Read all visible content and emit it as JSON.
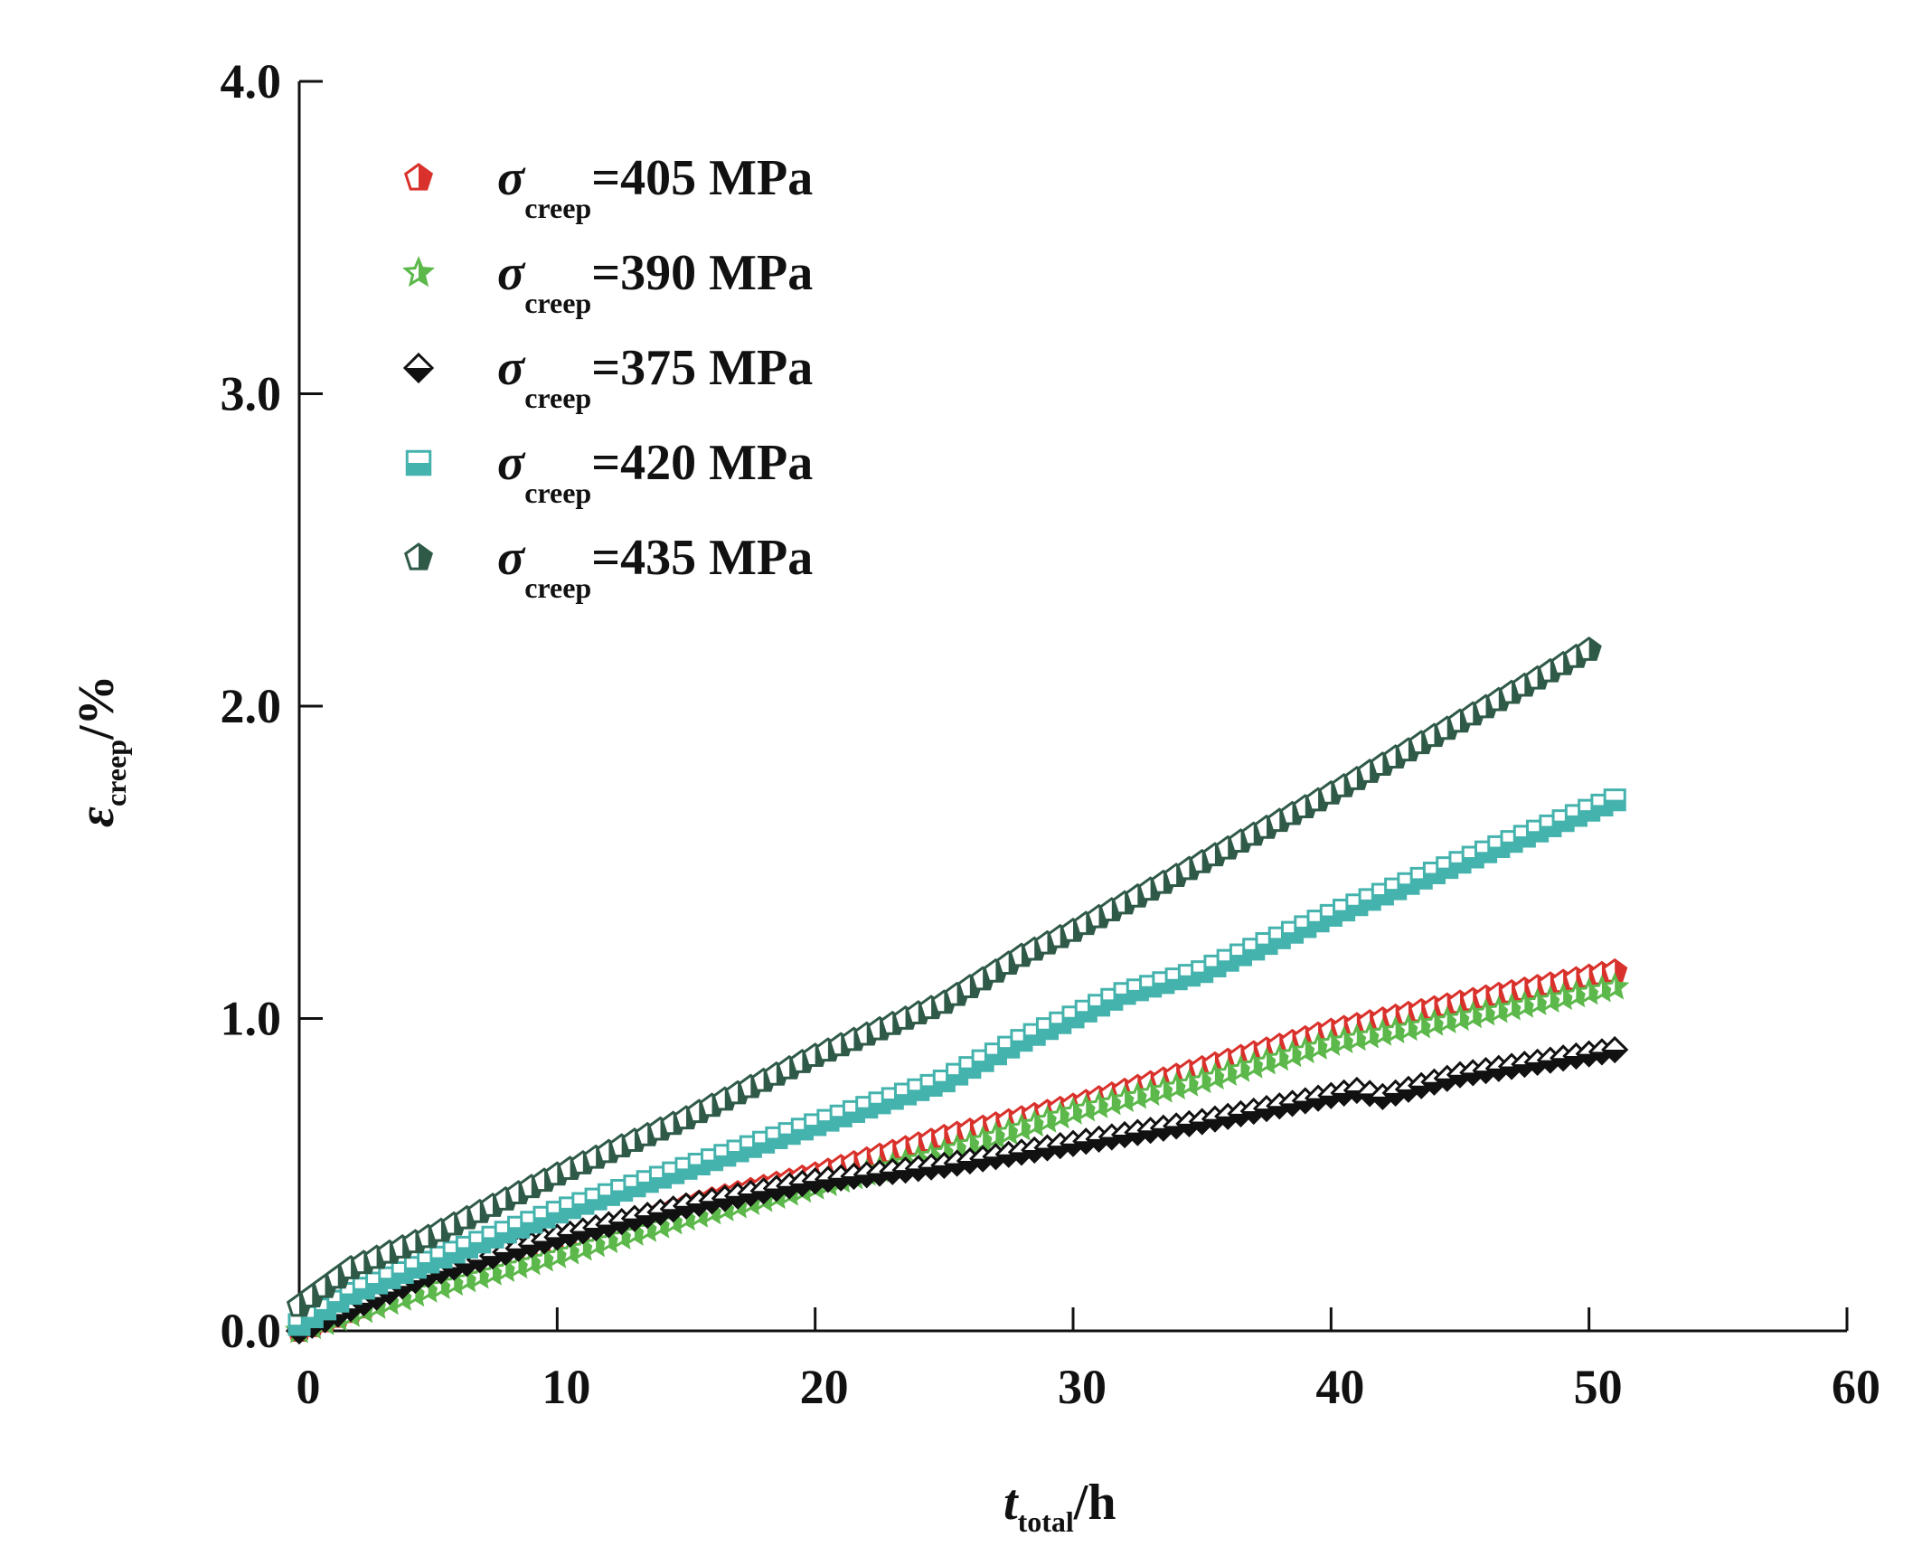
{
  "chart_data": {
    "type": "scatter",
    "title": "",
    "xlabel": {
      "main": "t",
      "sub": "total",
      "unit": "/h"
    },
    "ylabel": {
      "main": "ε",
      "sub": "creep",
      "unit": "/%"
    },
    "xlim": [
      0,
      60
    ],
    "ylim": [
      0,
      4.0
    ],
    "xticks": [
      "0",
      "10",
      "20",
      "30",
      "40",
      "50",
      "60"
    ],
    "yticks": [
      "0.0",
      "1.0",
      "2.0",
      "3.0",
      "4.0"
    ],
    "grid": false,
    "legend_position": "top-left",
    "series": [
      {
        "name": "σcreep=405 MPa",
        "symbol": "σ",
        "sub": "creep",
        "value": "=405 MPa",
        "color": "#d9312b",
        "marker": "pentagon",
        "points": [
          [
            0,
            0
          ],
          [
            5,
            0.15
          ],
          [
            10,
            0.28
          ],
          [
            15,
            0.4
          ],
          [
            20,
            0.5
          ],
          [
            25,
            0.62
          ],
          [
            30,
            0.72
          ],
          [
            35,
            0.84
          ],
          [
            40,
            0.96
          ],
          [
            45,
            1.05
          ],
          [
            51,
            1.15
          ]
        ]
      },
      {
        "name": "σcreep=390 MPa",
        "symbol": "σ",
        "sub": "creep",
        "value": "=390 MPa",
        "color": "#5cb84a",
        "marker": "star",
        "points": [
          [
            0,
            0
          ],
          [
            5,
            0.13
          ],
          [
            10,
            0.24
          ],
          [
            15,
            0.36
          ],
          [
            20,
            0.46
          ],
          [
            25,
            0.57
          ],
          [
            30,
            0.7
          ],
          [
            35,
            0.8
          ],
          [
            40,
            0.92
          ],
          [
            45,
            1.0
          ],
          [
            51,
            1.1
          ]
        ]
      },
      {
        "name": "σcreep=375 MPa",
        "symbol": "σ",
        "sub": "creep",
        "value": "=375 MPa",
        "color": "#111111",
        "marker": "diamond",
        "points": [
          [
            0,
            0
          ],
          [
            5,
            0.18
          ],
          [
            10,
            0.3
          ],
          [
            15,
            0.4
          ],
          [
            20,
            0.48
          ],
          [
            25,
            0.53
          ],
          [
            30,
            0.6
          ],
          [
            35,
            0.67
          ],
          [
            41,
            0.77
          ],
          [
            42,
            0.75
          ],
          [
            45,
            0.82
          ],
          [
            51,
            0.9
          ]
        ]
      },
      {
        "name": "σcreep=420 MPa",
        "symbol": "σ",
        "sub": "creep",
        "value": "=420 MPa",
        "color": "#45b3ad",
        "marker": "square",
        "points": [
          [
            0,
            0.02
          ],
          [
            2,
            0.12
          ],
          [
            5,
            0.22
          ],
          [
            10,
            0.38
          ],
          [
            15,
            0.52
          ],
          [
            20,
            0.66
          ],
          [
            25,
            0.8
          ],
          [
            28,
            0.93
          ],
          [
            32,
            1.08
          ],
          [
            35,
            1.15
          ],
          [
            40,
            1.33
          ],
          [
            45,
            1.5
          ],
          [
            51,
            1.7
          ]
        ]
      },
      {
        "name": "σcreep=435 MPa",
        "symbol": "σ",
        "sub": "creep",
        "value": "=435 MPa",
        "color": "#2f5a48",
        "marker": "pentagon",
        "points": [
          [
            0,
            0.08
          ],
          [
            2,
            0.2
          ],
          [
            5,
            0.3
          ],
          [
            10,
            0.5
          ],
          [
            15,
            0.68
          ],
          [
            20,
            0.88
          ],
          [
            25,
            1.05
          ],
          [
            28,
            1.2
          ],
          [
            30,
            1.28
          ],
          [
            35,
            1.5
          ],
          [
            40,
            1.72
          ],
          [
            45,
            1.95
          ],
          [
            50,
            2.18
          ]
        ]
      }
    ]
  }
}
